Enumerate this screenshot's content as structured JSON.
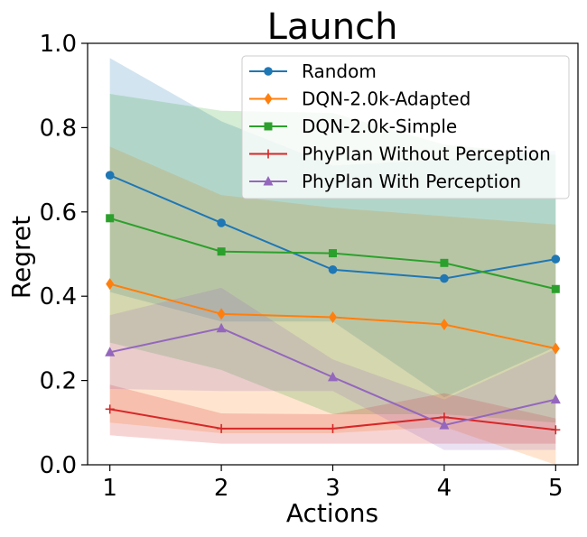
{
  "chart_data": {
    "type": "line",
    "title": "Launch",
    "xlabel": "Actions",
    "ylabel": "Regret",
    "x": [
      1,
      2,
      3,
      4,
      5
    ],
    "xlim": [
      0.8,
      5.2
    ],
    "ylim": [
      0.0,
      1.0
    ],
    "xticks": [
      "1",
      "2",
      "3",
      "4",
      "5"
    ],
    "yticks": [
      "0.0",
      "0.2",
      "0.4",
      "0.6",
      "0.8",
      "1.0"
    ],
    "grid": false,
    "legend_position": "top-right",
    "series": [
      {
        "name": "Random",
        "color": "#1f77b4",
        "marker": "circle",
        "values": [
          0.687,
          0.574,
          0.463,
          0.442,
          0.488
        ],
        "lower": [
          0.41,
          0.34,
          0.34,
          0.16,
          0.28
        ],
        "upper": [
          0.965,
          0.815,
          0.71,
          0.725,
          0.745
        ]
      },
      {
        "name": "DQN-2.0k-Adapted",
        "color": "#ff7f0e",
        "marker": "diamond",
        "values": [
          0.429,
          0.358,
          0.35,
          0.333,
          0.276
        ],
        "lower": [
          0.1,
          0.075,
          0.075,
          0.09,
          0.0
        ],
        "upper": [
          0.755,
          0.64,
          0.61,
          0.59,
          0.57
        ]
      },
      {
        "name": "DQN-2.0k-Simple",
        "color": "#2ca02c",
        "marker": "square",
        "values": [
          0.585,
          0.506,
          0.502,
          0.479,
          0.417
        ],
        "lower": [
          0.29,
          0.225,
          0.12,
          0.12,
          0.1
        ],
        "upper": [
          0.88,
          0.84,
          0.835,
          0.76,
          0.735
        ]
      },
      {
        "name": "PhyPlan Without Perception",
        "color": "#d62728",
        "marker": "plus",
        "values": [
          0.132,
          0.086,
          0.086,
          0.113,
          0.083
        ],
        "lower": [
          0.07,
          0.05,
          0.05,
          0.05,
          0.05
        ],
        "upper": [
          0.19,
          0.122,
          0.12,
          0.17,
          0.11
        ]
      },
      {
        "name": "PhyPlan With Perception",
        "color": "#9467bd",
        "marker": "triangle",
        "values": [
          0.267,
          0.324,
          0.208,
          0.094,
          0.155
        ],
        "lower": [
          0.18,
          0.175,
          0.175,
          0.035,
          0.035
        ],
        "upper": [
          0.355,
          0.42,
          0.25,
          0.155,
          0.275
        ]
      }
    ]
  }
}
